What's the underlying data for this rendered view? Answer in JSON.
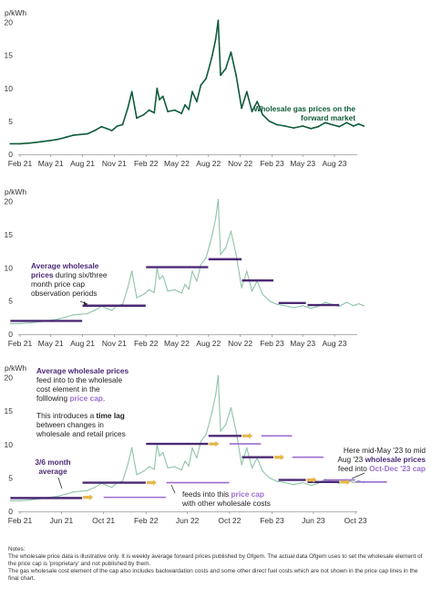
{
  "chart_data": [
    {
      "type": "line",
      "unit_label": "p/kWh",
      "y_ticks": [
        0,
        5,
        10,
        15,
        20
      ],
      "ylim": [
        0,
        20.5
      ],
      "x_ticks": [
        "Feb 21",
        "May 21",
        "Aug 21",
        "Nov 21",
        "Feb 22",
        "May 22",
        "Aug 22",
        "Nov 22",
        "Feb 23",
        "May 23",
        "Aug 23"
      ],
      "series": [
        {
          "x": [
            "2021-01-04",
            "2021-02-01",
            "2021-03-01",
            "2021-04-01",
            "2021-05-01",
            "2021-05-24",
            "2021-06-15",
            "2021-07-05",
            "2021-07-25",
            "2021-08-15",
            "2021-09-05",
            "2021-09-25",
            "2021-10-10",
            "2021-10-25",
            "2021-11-10",
            "2021-11-25",
            "2021-12-10",
            "2021-12-22",
            "2022-01-05",
            "2022-01-25",
            "2022-02-10",
            "2022-02-25",
            "2022-03-05",
            "2022-03-12",
            "2022-03-22",
            "2022-04-05",
            "2022-04-25",
            "2022-05-15",
            "2022-05-25",
            "2022-06-05",
            "2022-06-15",
            "2022-06-28",
            "2022-07-10",
            "2022-07-25",
            "2022-08-05",
            "2022-08-12",
            "2022-08-22",
            "2022-08-29",
            "2022-09-05",
            "2022-09-20",
            "2022-10-05",
            "2022-10-20",
            "2022-11-05",
            "2022-11-20",
            "2022-12-05",
            "2022-12-20",
            "2023-01-05",
            "2023-01-25",
            "2023-02-15",
            "2023-03-10",
            "2023-04-05",
            "2023-05-01",
            "2023-05-25",
            "2023-06-15",
            "2023-07-05",
            "2023-07-25",
            "2023-08-15",
            "2023-09-05",
            "2023-09-25",
            "2023-10-10",
            "2023-10-25"
          ],
          "y": [
            1.6,
            1.6,
            1.7,
            1.9,
            2.1,
            2.3,
            2.6,
            2.9,
            3.0,
            3.1,
            3.6,
            4.2,
            3.9,
            3.6,
            4.3,
            4.5,
            7.0,
            9.5,
            5.5,
            6.0,
            6.7,
            6.3,
            10.0,
            8.3,
            8.8,
            6.5,
            6.7,
            6.2,
            7.5,
            6.8,
            9.5,
            8.0,
            10.5,
            11.5,
            13.6,
            15.0,
            17.5,
            20.3,
            12.0,
            13.0,
            15.5,
            12.0,
            7.0,
            9.5,
            6.5,
            8.0,
            6.0,
            5.0,
            4.5,
            4.3,
            4.0,
            4.3,
            3.9,
            4.2,
            4.8,
            4.5,
            4.2,
            4.8,
            4.3,
            4.6,
            4.3
          ]
        }
      ],
      "annotations": [
        {
          "lines": [
            "Wholesale gas prices on the",
            "forward market"
          ]
        }
      ]
    },
    {
      "type": "line",
      "unit_label": "p/kWh",
      "y_ticks": [
        0,
        5,
        10,
        15,
        20
      ],
      "ylim": [
        0,
        20.5
      ],
      "x_ticks": [
        "Feb 21",
        "May 21",
        "Aug 21",
        "Nov 21",
        "Feb 22",
        "May 22",
        "Aug 22",
        "Nov 22",
        "Feb 23",
        "May 23",
        "Aug 23"
      ],
      "averages": [
        {
          "x0": "2021-01-04",
          "x1": "2021-07-31",
          "y": 2.0
        },
        {
          "x0": "2021-08-01",
          "x1": "2022-01-31",
          "y": 4.3
        },
        {
          "x0": "2022-02-01",
          "x1": "2022-07-31",
          "y": 10.1
        },
        {
          "x0": "2022-08-01",
          "x1": "2022-11-05",
          "y": 11.3
        },
        {
          "x0": "2022-11-06",
          "x1": "2023-02-05",
          "y": 8.1
        },
        {
          "x0": "2023-02-20",
          "x1": "2023-05-10",
          "y": 4.7
        },
        {
          "x0": "2023-05-15",
          "x1": "2023-08-15",
          "y": 4.4
        }
      ],
      "annotations": [
        {
          "bold": "Average wholesale",
          "lines": [
            "prices during six/three",
            "month price cap",
            "observation periods"
          ],
          "bold_prefix_line2": "prices"
        }
      ]
    },
    {
      "type": "line",
      "unit_label": "p/kWh",
      "y_ticks": [
        0,
        5,
        10,
        15,
        20
      ],
      "ylim": [
        0,
        20.5
      ],
      "x_ticks": [
        "Feb 21",
        "Jun 21",
        "Oct 21",
        "Feb 22",
        "Jun 22",
        "Oct 22",
        "Feb 23",
        "Jun 23",
        "Oct 23"
      ],
      "caps": [
        {
          "x0": "2021-10-01",
          "x1": "2022-03-31",
          "y": 2.1
        },
        {
          "x0": "2022-04-01",
          "x1": "2022-09-30",
          "y": 4.3
        },
        {
          "x0": "2022-10-01",
          "x1": "2022-12-31",
          "y": 10.1
        },
        {
          "x0": "2023-01-01",
          "x1": "2023-03-31",
          "y": 11.3
        },
        {
          "x0": "2023-04-01",
          "x1": "2023-06-30",
          "y": 8.1
        },
        {
          "x0": "2023-07-01",
          "x1": "2023-09-30",
          "y": 4.7
        },
        {
          "x0": "2023-10-01",
          "x1": "2023-12-31",
          "y": 4.4
        }
      ]
    }
  ],
  "panel3_text": {
    "line1_bold": "Average wholesale prices",
    "line2": "feed into to the wholesale",
    "line3": "cost element in the",
    "line4_a": "folllowing ",
    "line4_b": "price cap",
    "line4_c": ".",
    "line5": "This introduces a ",
    "line5_b": "time lag",
    "line6": "between changes in",
    "line7": "wholesale and retail prices",
    "avg_label_1": "3/6 month",
    "avg_label_2": "average",
    "feeds_1": "feeds into this ",
    "feeds_1b": "price cap",
    "feeds_2": "with other wholesale costs",
    "right_1": "Here mid-May '23 to mid",
    "right_2a": "Aug '23 ",
    "right_2b": "wholesale prices",
    "right_3a": "feed into ",
    "right_3b": "Oct-Dec '23 cap"
  },
  "colors": {
    "series_dark": "#0f5c3a",
    "series_light": "#8fc4a8",
    "average": "#4b2a75",
    "cap": "#9b6dd0",
    "arrow": "#e3b84a"
  },
  "notes": [
    "Notes:",
    "The wholesale price data is illustrative only. It is weekly average forward prices published by Ofgem. The actual data Ofgem uses to set the wholesale element of the price cap is 'proprietary' and not published by them.",
    "The gas wholesale cost element of the cap also includes backwardation costs and some other direct fuel costs which are not shown in the price cap lines in the final chart."
  ]
}
